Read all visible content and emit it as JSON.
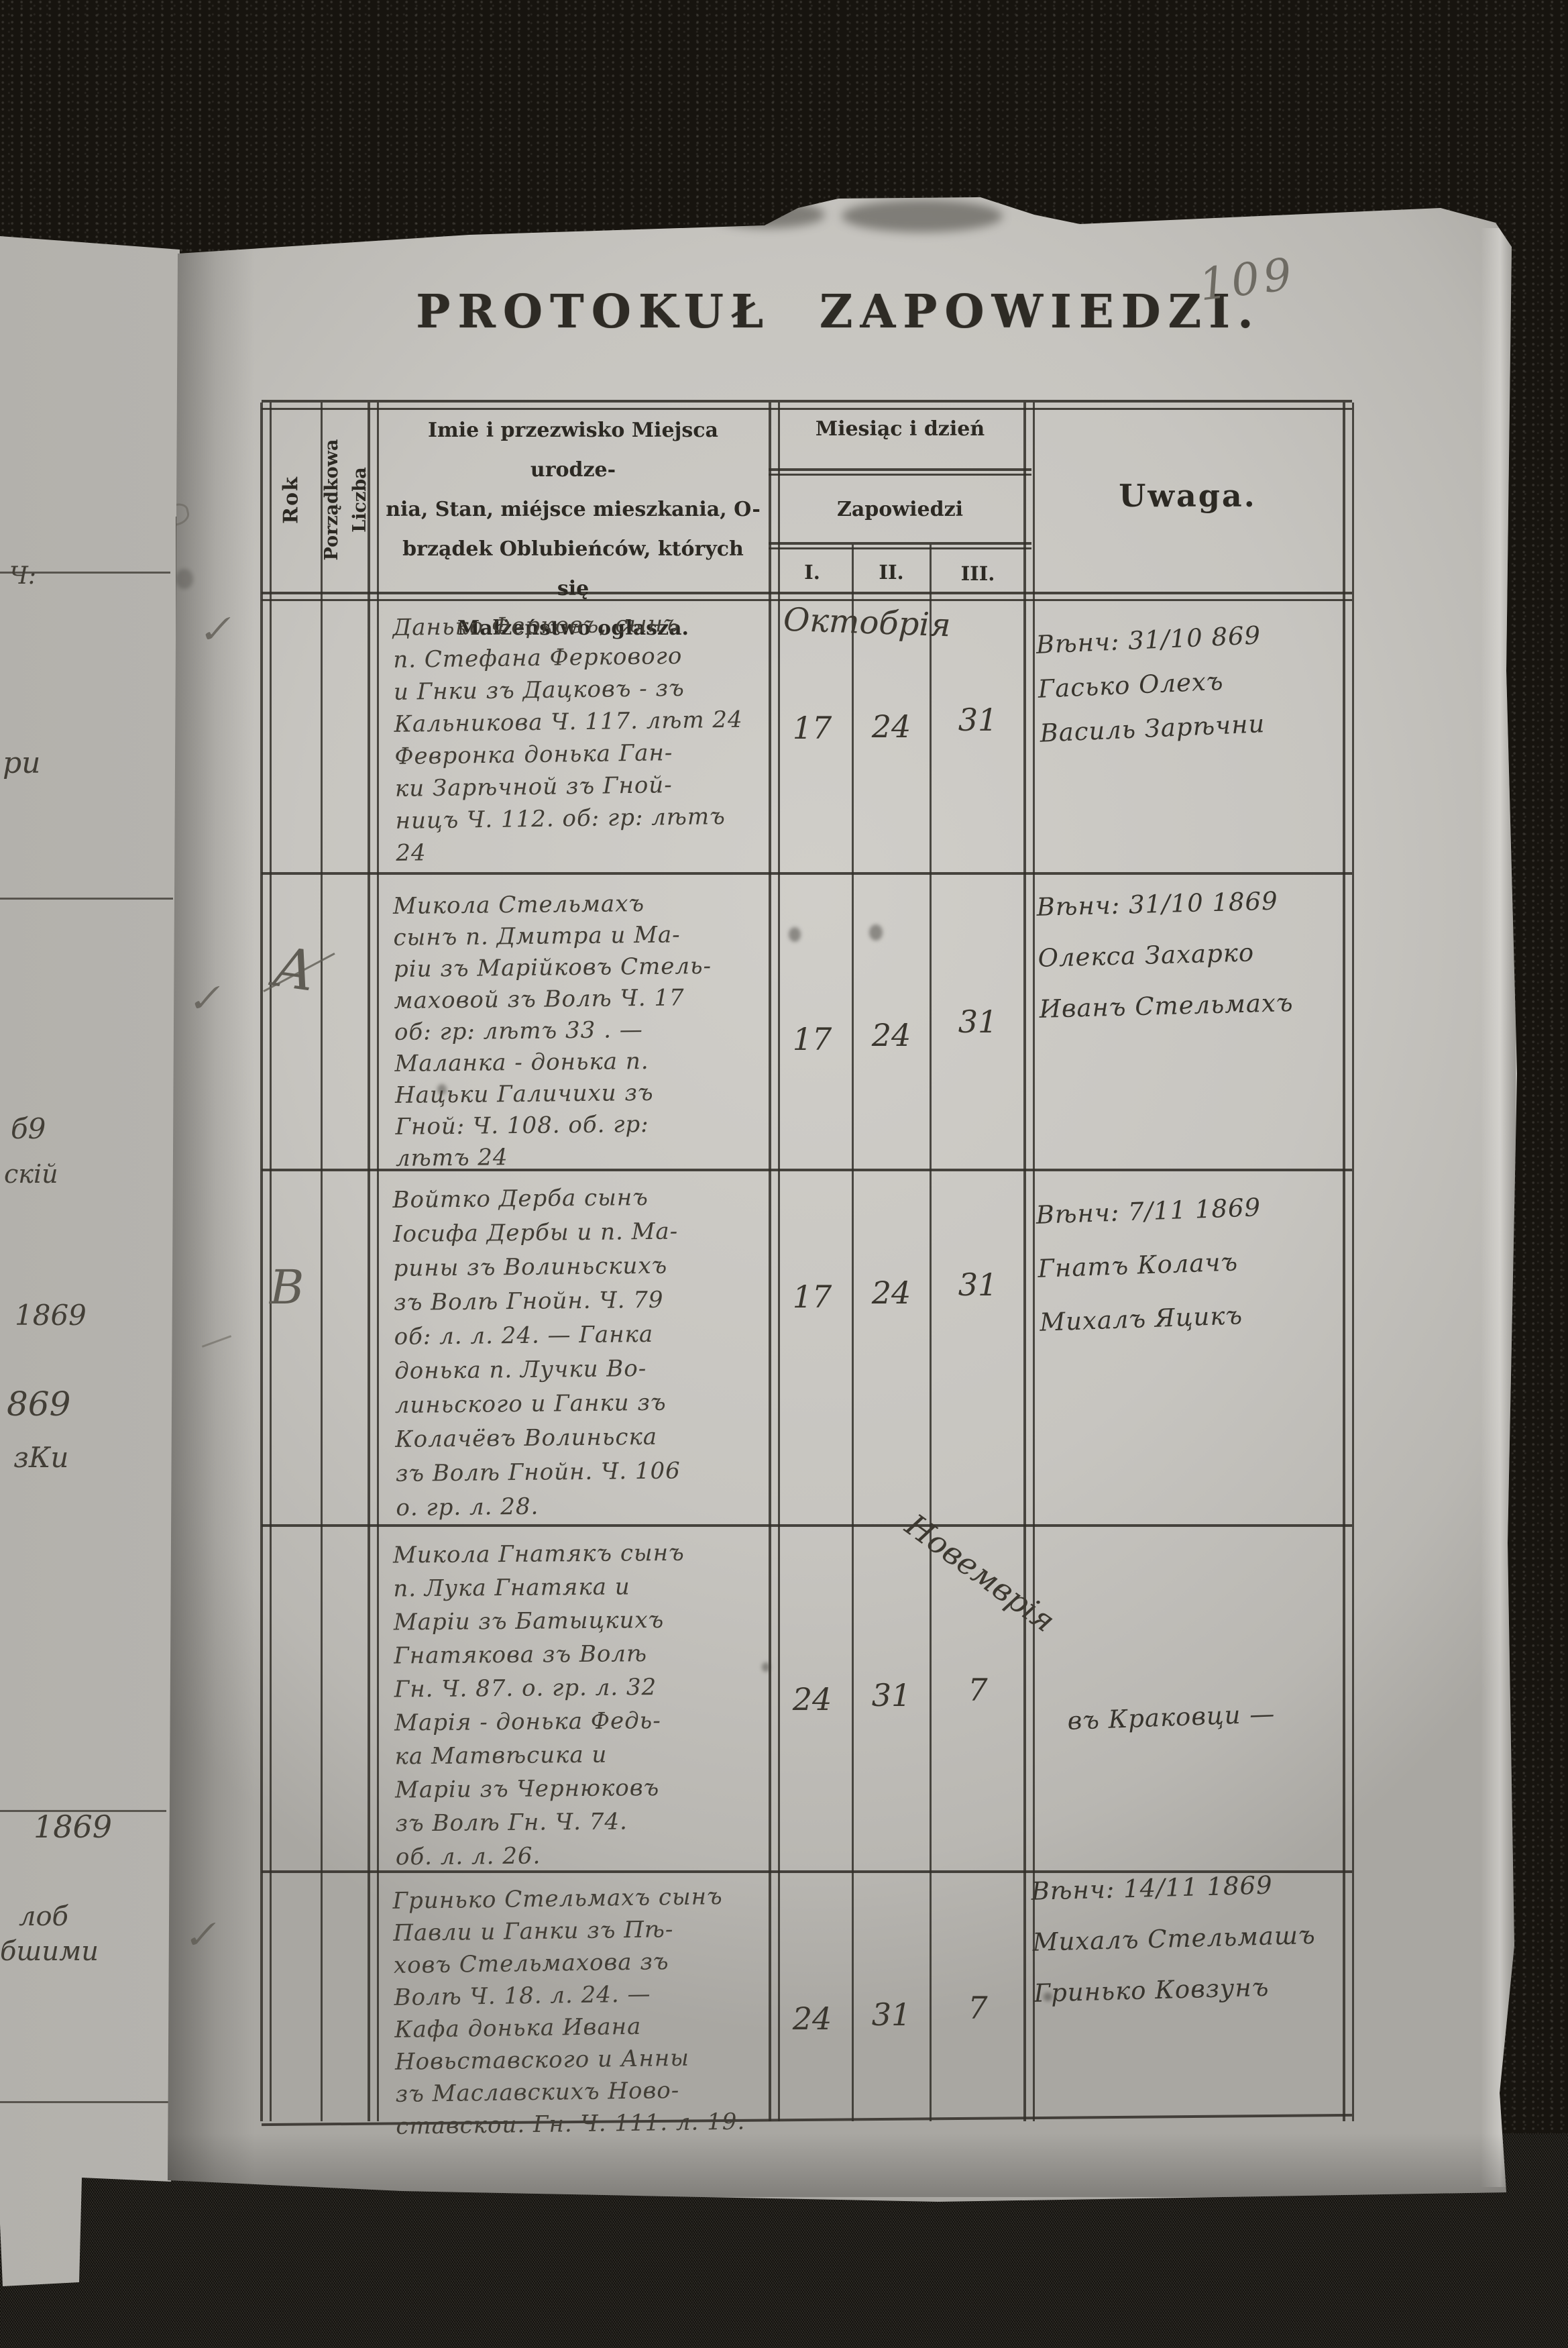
{
  "page": {
    "number": "109",
    "title": "PROTOKUŁ ZAPOWIEDZI."
  },
  "table": {
    "header": {
      "rok": "Rok",
      "porzadkowa_lines": [
        "Porządkowa",
        "Liczba"
      ],
      "names_lines": [
        "Imie i przezwisko Miejsca urodze-",
        "nia, Stan, miéjsce mieszkania, O-",
        "brządek Oblubieńców, których się",
        "Małżeństwo ogłasza."
      ],
      "miesiac": "Miesiąc i dzień",
      "zapowiedzi": "Zapowiedzi",
      "banns_cols": [
        "I.",
        "II.",
        "III."
      ],
      "uwaga": "Uwaga."
    },
    "rows": [
      {
        "month": "Октобрія",
        "entry_lines": [
          "Данько Ферковъ, сынъ",
          "п. Стефана Феркового",
          "и Гнки зъ Дацковъ - зъ",
          "Кальникова Ч. 117. лѣт 24",
          "Февронка донька Ган-",
          "ки Зарѣчной зъ Гной-",
          "ницъ Ч. 112. об: гр: лѣтъ",
          "24"
        ],
        "dates": [
          "17",
          "24",
          "31"
        ],
        "uwaga_lines": [
          "Вѣнч: 31/10 869",
          "Гасько Олехъ",
          "Василь Зарѣчни"
        ]
      },
      {
        "pencil_letter": "А",
        "entry_lines": [
          "Микола Стельмахъ",
          "сынъ п. Дмитра и Ма-",
          "ріи зъ Марійковъ Стель-",
          "маховой зъ Волѣ Ч. 17",
          "об: гр: лѣтъ 33 . —",
          "Маланка - донька п.",
          "Нацьки Галичихи зъ",
          "Гной: Ч. 108. об. гр:",
          "лѣтъ 24"
        ],
        "dates": [
          "17",
          "24",
          "31"
        ],
        "uwaga_lines": [
          "Вѣнч: 31/10 1869",
          "Олекса Захарко",
          "Иванъ Стельмахъ"
        ]
      },
      {
        "pencil_letter": "В",
        "entry_lines": [
          "Войтко Дерба сынъ",
          "Іосифа Дербы и п. Ма-",
          "рины зъ Волиньскихъ",
          "зъ Волѣ Гнойн. Ч. 79",
          "об: л. л. 24. — Ганка",
          "донька п. Лучки Во-",
          "линьского и Ганки зъ",
          "Колачёвъ Волиньска",
          "зъ Волѣ Гнойн. Ч. 106",
          "о. гр. л. 28."
        ],
        "dates": [
          "17",
          "24",
          "31"
        ],
        "uwaga_lines": [
          "Вѣнч: 7/11 1869",
          "Гнатъ Колачъ",
          "Михалъ Яцикъ"
        ]
      },
      {
        "month": "Новемврія",
        "entry_lines": [
          "Микола Гнатякъ сынъ",
          "п. Лука Гнатяка и",
          "Маріи зъ Батыцкихъ",
          "Гнатякова зъ Волѣ",
          "Гн. Ч. 87. о. гр. л. 32",
          "Марія - донька Федь-",
          "ка Матвѣсика и",
          "Маріи зъ Чернюковъ",
          "зъ Волѣ Гн. Ч. 74.",
          "об. л. л. 26."
        ],
        "dates": [
          "24",
          "31",
          "7"
        ],
        "uwaga_lines": [
          "въ Краковци —"
        ]
      },
      {
        "entry_lines": [
          "Гринько Стельмахъ сынъ",
          "Павли и Ганки зъ Пѣ-",
          "ховъ Стельмахова зъ",
          "Волѣ Ч. 18. л. 24. —",
          "Кафа донька Ивана",
          "Новьставского и Анны",
          "зъ Маславскихъ Ново-",
          "ставскои. Гн. Ч. 111. л. 19."
        ],
        "dates": [
          "24",
          "31",
          "7"
        ],
        "uwaga_lines": [
          "Вѣнч: 14/11 1869",
          "Михалъ Стельмашъ",
          "Гринько Ковзунъ"
        ]
      }
    ]
  },
  "pencil_marks": {
    "check": "✓"
  },
  "facing_page": {
    "fragments": [
      "Ч:",
      "ри",
      "б9",
      "скій",
      "1869",
      "869",
      "зКи",
      "1869",
      "лоб",
      "бшими"
    ]
  },
  "colors": {
    "paper": "#c9c7c2",
    "ink": "#33302a",
    "handwriting": "#403c34",
    "pencil": "#5f5c54",
    "leather": "#17140f"
  }
}
